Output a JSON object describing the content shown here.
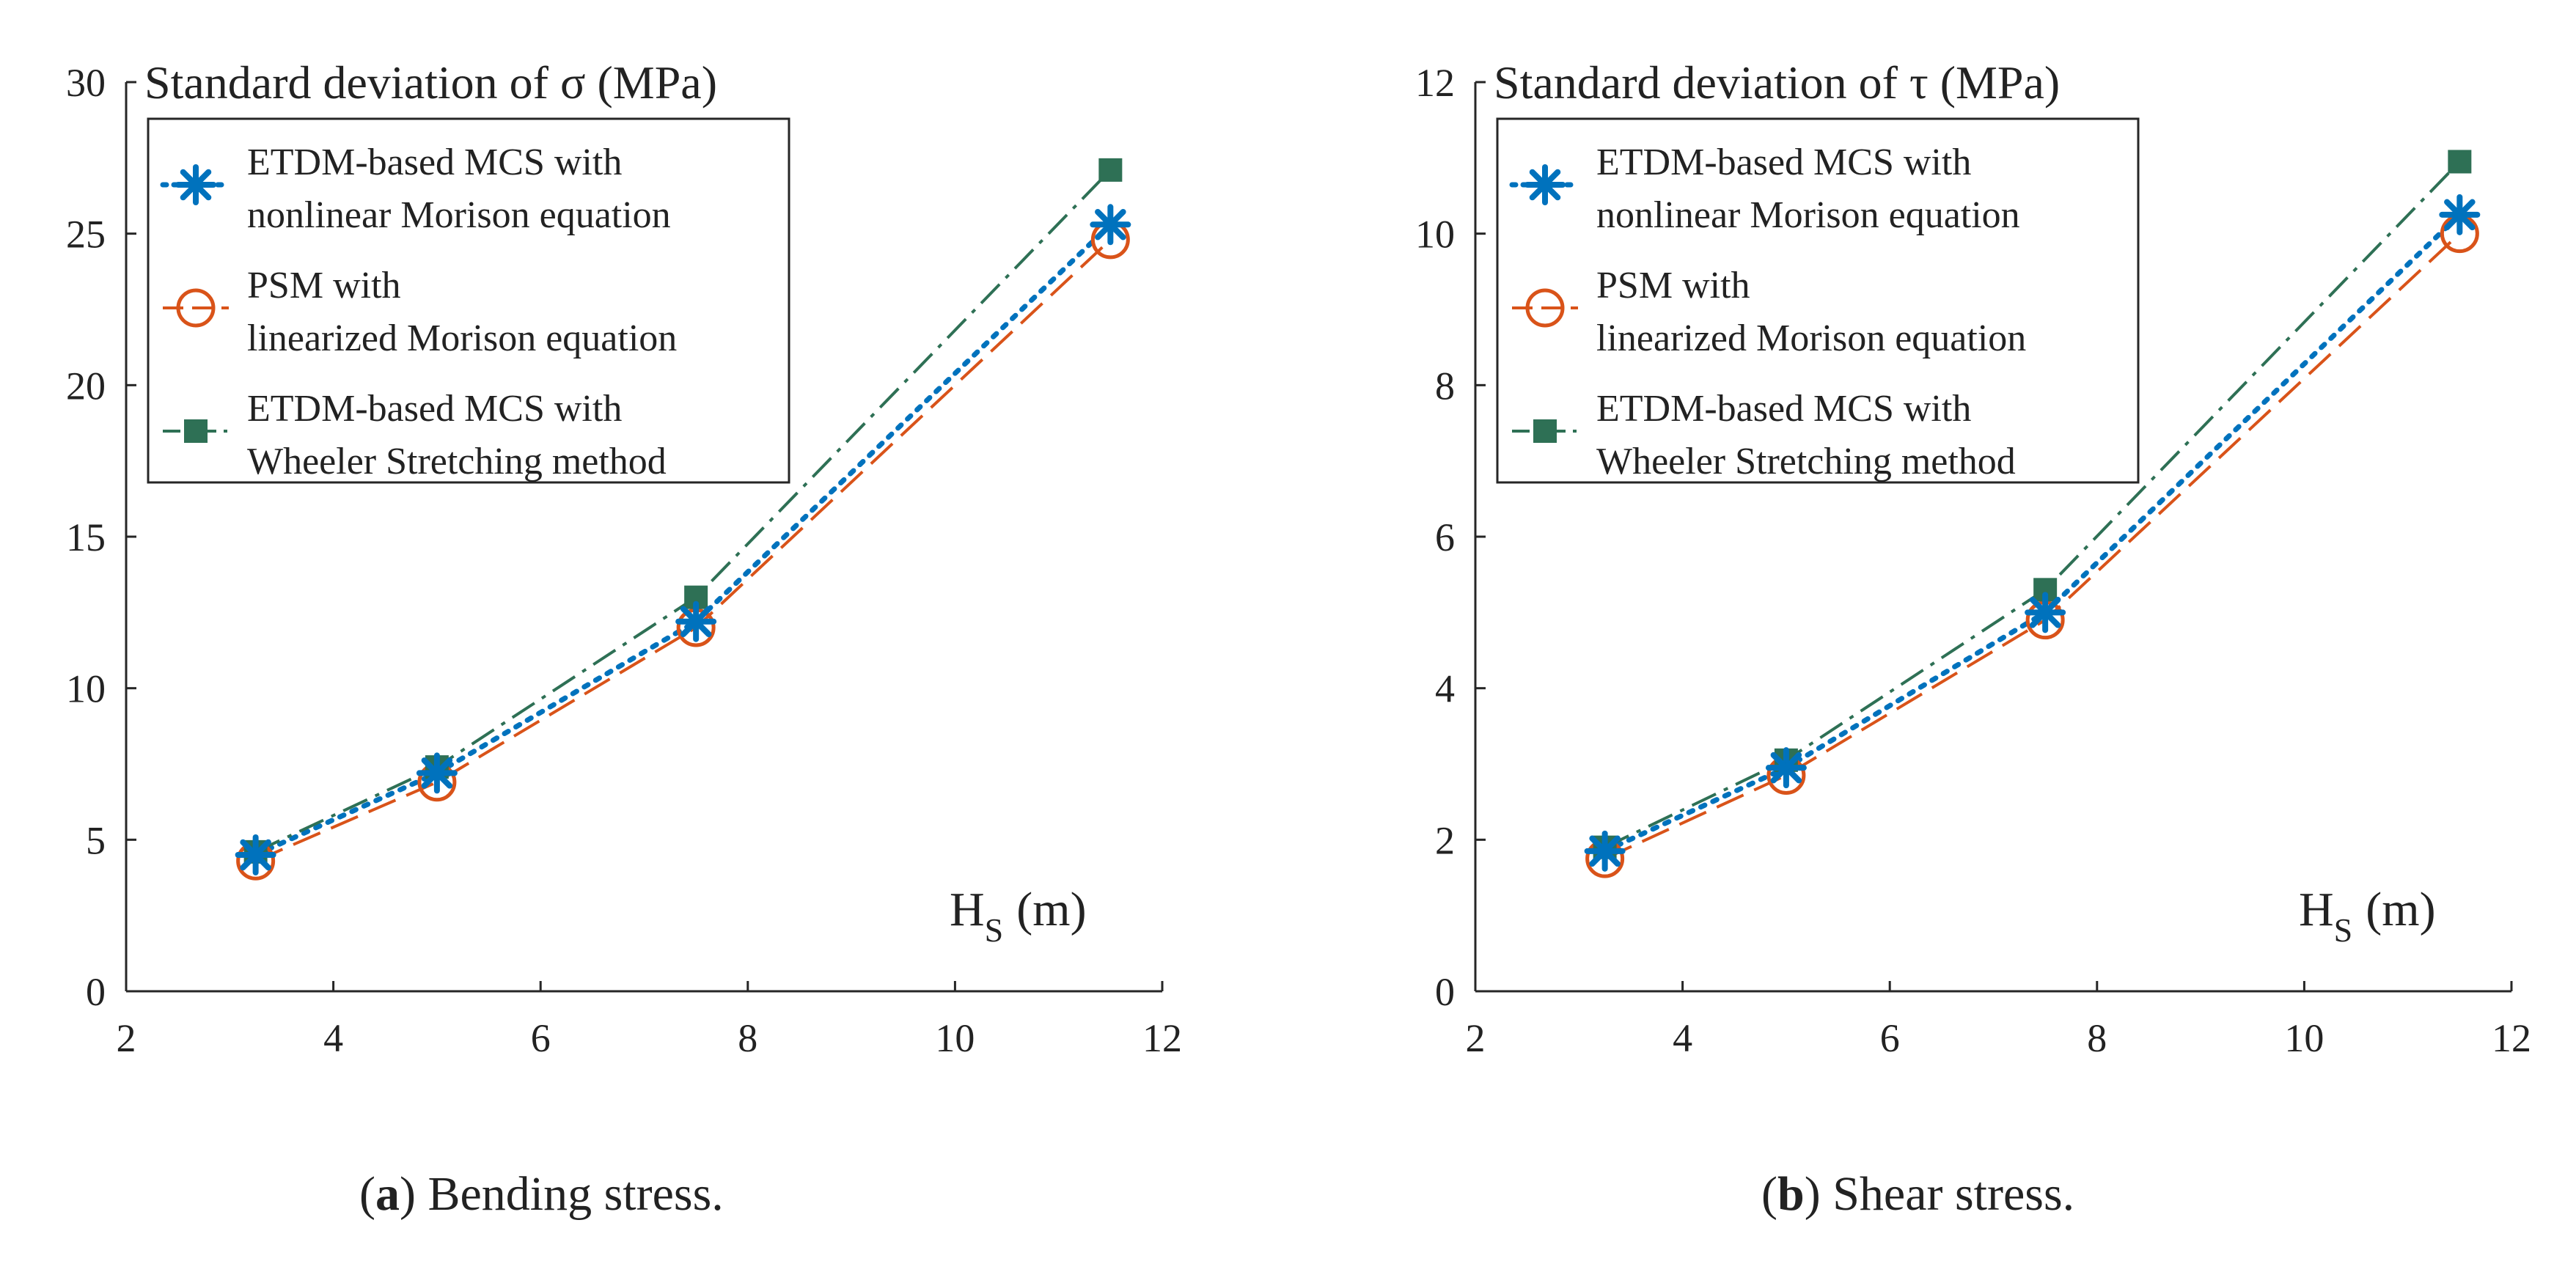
{
  "chart_data": [
    {
      "type": "line",
      "caption_letter": "a",
      "caption_open": "(",
      "caption_close": ")",
      "caption_text": " Bending stress.",
      "ylabel": "Standard deviation of σ (MPa)",
      "xlabel_main": "H",
      "xlabel_sub": "S",
      "xlabel_unit": "(m)",
      "xlim": [
        2,
        12
      ],
      "ylim": [
        0,
        30
      ],
      "xticks": [
        2,
        4,
        6,
        8,
        10,
        12
      ],
      "yticks": [
        0,
        5,
        10,
        15,
        20,
        25,
        30
      ],
      "series": [
        {
          "name_lines": [
            "ETDM-based MCS with",
            "nonlinear Morison equation"
          ],
          "color": "#0072BD",
          "marker": "asterisk",
          "x": [
            3.25,
            5,
            7.5,
            11.5
          ],
          "values": [
            4.5,
            7.2,
            12.2,
            25.3
          ]
        },
        {
          "name_lines": [
            "PSM with",
            "linearized Morison equation"
          ],
          "color": "#D95319",
          "marker": "circle",
          "x": [
            3.25,
            5,
            7.5,
            11.5
          ],
          "values": [
            4.3,
            6.9,
            12.0,
            24.8
          ]
        },
        {
          "name_lines": [
            "ETDM-based MCS with",
            "Wheeler Stretching method"
          ],
          "color": "#2E7055",
          "marker": "square",
          "x": [
            3.25,
            5,
            7.5,
            11.5
          ],
          "values": [
            4.6,
            7.4,
            13.0,
            27.1
          ]
        }
      ]
    },
    {
      "type": "line",
      "caption_letter": "b",
      "caption_open": "(",
      "caption_close": ")",
      "caption_text": " Shear stress.",
      "ylabel": "Standard deviation of τ (MPa)",
      "xlabel_main": "H",
      "xlabel_sub": "S",
      "xlabel_unit": "(m)",
      "xlim": [
        2,
        12
      ],
      "ylim": [
        0,
        12
      ],
      "xticks": [
        2,
        4,
        6,
        8,
        10,
        12
      ],
      "yticks": [
        0,
        2,
        4,
        6,
        8,
        10,
        12
      ],
      "series": [
        {
          "name_lines": [
            "ETDM-based MCS with",
            "nonlinear Morison equation"
          ],
          "color": "#0072BD",
          "marker": "asterisk",
          "x": [
            3.25,
            5,
            7.5,
            11.5
          ],
          "values": [
            1.85,
            2.95,
            5.0,
            10.25
          ]
        },
        {
          "name_lines": [
            "PSM with",
            "linearized Morison equation"
          ],
          "color": "#D95319",
          "marker": "circle",
          "x": [
            3.25,
            5,
            7.5,
            11.5
          ],
          "values": [
            1.75,
            2.85,
            4.9,
            10.0
          ]
        },
        {
          "name_lines": [
            "ETDM-based MCS with",
            "Wheeler Stretching method"
          ],
          "color": "#2E7055",
          "marker": "square",
          "x": [
            3.25,
            5,
            7.5,
            11.5
          ],
          "values": [
            1.9,
            3.05,
            5.3,
            10.95
          ]
        }
      ]
    }
  ]
}
